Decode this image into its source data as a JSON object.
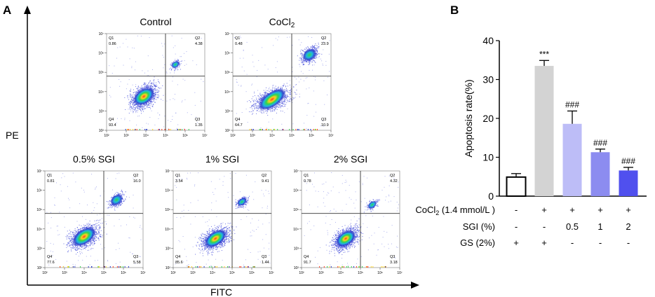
{
  "panel_labels": {
    "a": "A",
    "b": "B"
  },
  "flow": {
    "y_axis_label": "PE",
    "x_axis_label": "FITC",
    "tick_labels_x": [
      "10²",
      "10³",
      "10⁴",
      "10⁵",
      "10⁶",
      "10⁷"
    ],
    "tick_labels_y": [
      "10⁷",
      "10⁶",
      "10⁵",
      "10⁴",
      "10³",
      "10²"
    ],
    "quadrant_names": [
      "Q1",
      "Q2",
      "Q4",
      "Q3"
    ],
    "plots": [
      {
        "title": "Control",
        "q1": "0.86",
        "q2": "4.38",
        "q4": "93.4",
        "q3": "1.35"
      },
      {
        "title": "CoCl2",
        "q1": "0.48",
        "q2": "23.9",
        "q4": "64.7",
        "q3": "10.9"
      },
      {
        "title": "0.5% SGI",
        "q1": "0.81",
        "q2": "16.0",
        "q4": "77.6",
        "q3": "5.58"
      },
      {
        "title": "1% SGI",
        "q1": "3.54",
        "q2": "9.41",
        "q4": "85.6",
        "q3": "1.44"
      },
      {
        "title": "2% SGI",
        "q1": "0.78",
        "q2": "4.32",
        "q4": "91.7",
        "q3": "3.18"
      }
    ]
  },
  "chart_data": {
    "type": "bar",
    "ylabel": "Apoptosis rate(%)",
    "ylim": [
      0,
      40
    ],
    "yticks": [
      0,
      10,
      20,
      30,
      40
    ],
    "values": [
      4.9,
      33.5,
      18.6,
      11.3,
      6.6
    ],
    "errors": [
      0.9,
      1.4,
      3.3,
      0.8,
      0.8
    ],
    "significance": [
      "",
      "***",
      "###",
      "###",
      "###"
    ],
    "colors": [
      "#ffffff",
      "#d3d3d3",
      "#bdbdf7",
      "#8c8cf0",
      "#5050ee"
    ],
    "edge_colors": [
      "#000000",
      "#d3d3d3",
      "#bdbdf7",
      "#8c8cf0",
      "#5050ee"
    ],
    "condition_table": {
      "rows": [
        {
          "label": "CoCl2 (1.4 mmol/L )",
          "values": [
            "-",
            "+",
            "+",
            "+",
            "+"
          ]
        },
        {
          "label": "SGI (%)",
          "values": [
            "-",
            "-",
            "0.5",
            "1",
            "2"
          ]
        },
        {
          "label": "GS (2%)",
          "values": [
            "+",
            "+",
            "-",
            "-",
            "-"
          ]
        }
      ]
    }
  }
}
